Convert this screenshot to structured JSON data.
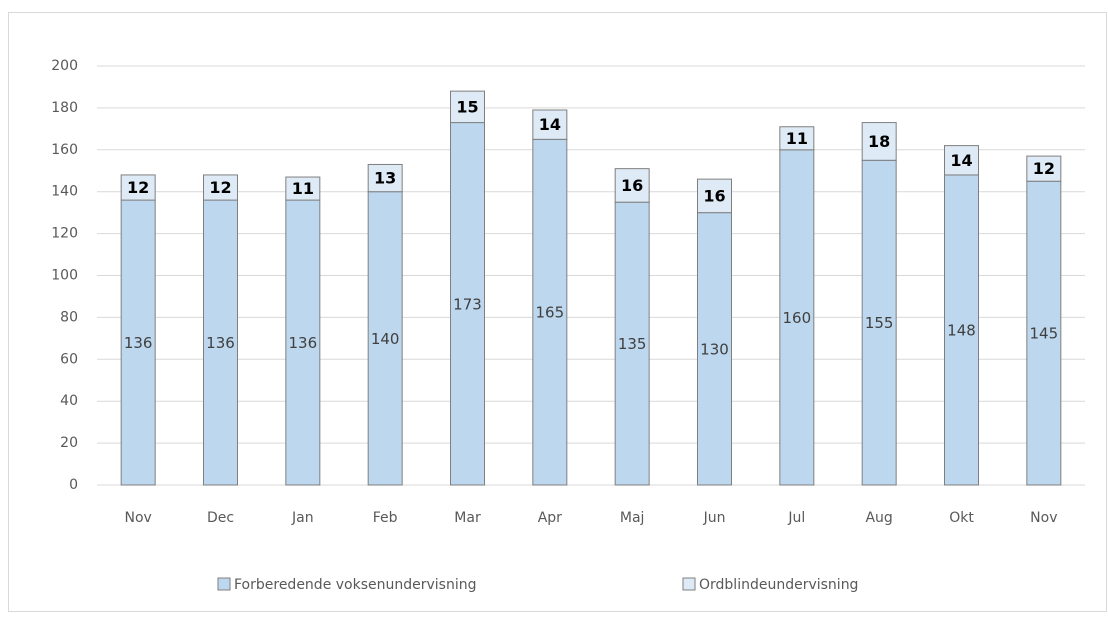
{
  "chart_data": {
    "type": "stacked_bar",
    "categories": [
      "Nov",
      "Dec",
      "Jan",
      "Feb",
      "Mar",
      "Apr",
      "Maj",
      "Jun",
      "Jul",
      "Aug",
      "Okt",
      "Nov"
    ],
    "series": [
      {
        "name": "Forberedende voksenundervisning",
        "color": "#bdd7ee",
        "values": [
          136,
          136,
          136,
          140,
          173,
          165,
          135,
          130,
          160,
          155,
          148,
          145
        ]
      },
      {
        "name": "Ordblindeundervisning",
        "color": "#deebf7",
        "values": [
          12,
          12,
          11,
          13,
          15,
          14,
          16,
          16,
          11,
          18,
          14,
          12
        ]
      }
    ],
    "ylim": [
      0,
      200
    ],
    "yticks": [
      0,
      20,
      40,
      60,
      80,
      100,
      120,
      140,
      160,
      180,
      200
    ],
    "grid": true,
    "legend": "bottom"
  }
}
